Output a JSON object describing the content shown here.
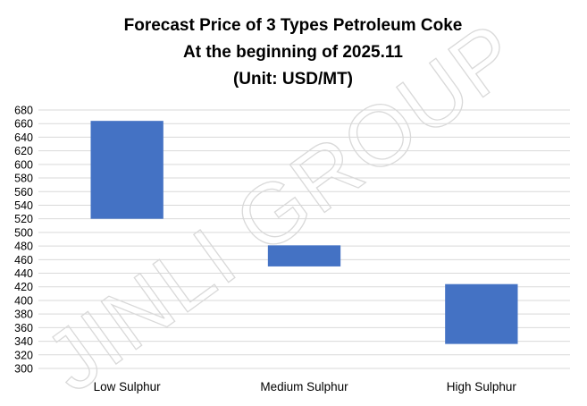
{
  "chart_data": {
    "type": "bar",
    "subtype": "floating-range",
    "title": [
      "Forecast Price of 3 Types Petroleum Coke",
      "At the beginning of 2025.11",
      "(Unit: USD/MT)"
    ],
    "categories": [
      "Low Sulphur",
      "Medium Sulphur",
      "High Sulphur"
    ],
    "ranges": [
      {
        "low": 520,
        "high": 664
      },
      {
        "low": 450,
        "high": 481
      },
      {
        "low": 336,
        "high": 424
      }
    ],
    "ylim": [
      300,
      680
    ],
    "ytick_step": 20,
    "grid": true,
    "bar_color": "#4472c4",
    "grid_color": "#d9d9d9",
    "xlabel": "",
    "ylabel": ""
  },
  "watermark": "JINLI GROUP"
}
